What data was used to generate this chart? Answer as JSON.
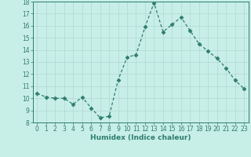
{
  "x": [
    0,
    1,
    2,
    3,
    4,
    5,
    6,
    7,
    8,
    9,
    10,
    11,
    12,
    13,
    14,
    15,
    16,
    17,
    18,
    19,
    20,
    21,
    22,
    23
  ],
  "y": [
    10.4,
    10.1,
    10.0,
    10.0,
    9.5,
    10.1,
    9.2,
    8.4,
    8.5,
    11.5,
    13.4,
    13.6,
    15.9,
    17.9,
    15.5,
    16.1,
    16.7,
    15.6,
    14.5,
    13.9,
    13.3,
    12.5,
    11.5,
    10.8
  ],
  "line_color": "#2e7d6e",
  "marker": "D",
  "marker_size": 2.5,
  "bg_color": "#c8eee8",
  "grid_color": "#b0d8d0",
  "xlabel": "Humidex (Indice chaleur)",
  "ylim": [
    8,
    18
  ],
  "xlim": [
    -0.5,
    23.5
  ],
  "yticks": [
    8,
    9,
    10,
    11,
    12,
    13,
    14,
    15,
    16,
    17,
    18
  ],
  "xticks": [
    0,
    1,
    2,
    3,
    4,
    5,
    6,
    7,
    8,
    9,
    10,
    11,
    12,
    13,
    14,
    15,
    16,
    17,
    18,
    19,
    20,
    21,
    22,
    23
  ],
  "label_fontsize": 6.5,
  "tick_fontsize": 5.5
}
